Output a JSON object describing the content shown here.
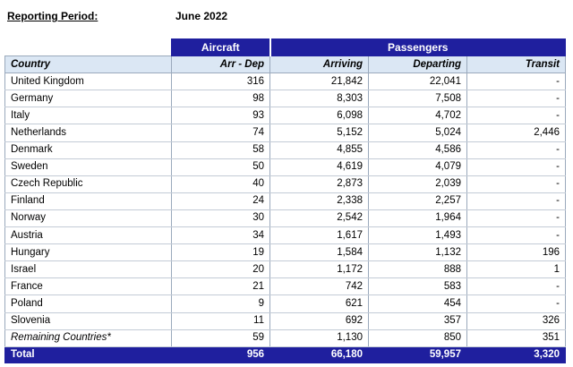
{
  "report": {
    "period_label": "Reporting Period:",
    "period_value": "June 2022"
  },
  "table": {
    "group_headers": {
      "aircraft": "Aircraft",
      "passengers": "Passengers"
    },
    "columns": [
      "Country",
      "Arr - Dep",
      "Arriving",
      "Departing",
      "Transit"
    ],
    "rows": [
      [
        "United Kingdom",
        "316",
        "21,842",
        "22,041",
        "-"
      ],
      [
        "Germany",
        "98",
        "8,303",
        "7,508",
        "-"
      ],
      [
        "Italy",
        "93",
        "6,098",
        "4,702",
        "-"
      ],
      [
        "Netherlands",
        "74",
        "5,152",
        "5,024",
        "2,446"
      ],
      [
        "Denmark",
        "58",
        "4,855",
        "4,586",
        "-"
      ],
      [
        "Sweden",
        "50",
        "4,619",
        "4,079",
        "-"
      ],
      [
        "Czech Republic",
        "40",
        "2,873",
        "2,039",
        "-"
      ],
      [
        "Finland",
        "24",
        "2,338",
        "2,257",
        "-"
      ],
      [
        "Norway",
        "30",
        "2,542",
        "1,964",
        "-"
      ],
      [
        "Austria",
        "34",
        "1,617",
        "1,493",
        "-"
      ],
      [
        "Hungary",
        "19",
        "1,584",
        "1,132",
        "196"
      ],
      [
        "Israel",
        "20",
        "1,172",
        "888",
        "1"
      ],
      [
        "France",
        "21",
        "742",
        "583",
        "-"
      ],
      [
        "Poland",
        "9",
        "621",
        "454",
        "-"
      ],
      [
        "Slovenia",
        "11",
        "692",
        "357",
        "326"
      ],
      [
        "Remaining Countries*",
        "59",
        "1,130",
        "850",
        "351"
      ]
    ],
    "total": [
      "Total",
      "956",
      "66,180",
      "59,957",
      "3,320"
    ]
  },
  "colors": {
    "header_blue": "#1f1f9e",
    "column_header_bg": "#dbe7f4"
  }
}
